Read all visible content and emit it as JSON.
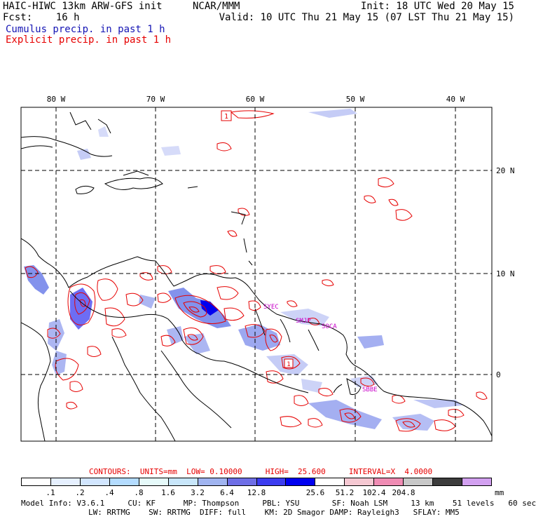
{
  "header": {
    "model_title": "HAIC-HIWC 13km ARW-GFS init",
    "center": "NCAR/MMM",
    "init": "Init: 18 UTC Wed 20 May 15",
    "fcst_label": "Fcst:",
    "fcst_value": "16 h",
    "valid": "Valid: 10 UTC Thu 21 May 15 (07 LST Thu 21 May 15)",
    "cumulus": "Cumulus precip. in past 1 h",
    "explicit": "Explicit precip. in past 1 h"
  },
  "map": {
    "lon_labels": [
      "80 W",
      "70 W",
      "60 W",
      "50 W",
      "40 W"
    ],
    "lat_labels": [
      "20 N",
      "10 N",
      "0"
    ],
    "max_marker": "1",
    "min_marker": "1",
    "stations": [
      "SYEC",
      "SMJP",
      "SOCA",
      "SBBE"
    ],
    "colors": {
      "coast": "#000000",
      "cumulus": "#5a6ee6",
      "explicit": "#e60000",
      "station": "#c800c8"
    }
  },
  "contours": {
    "label": "CONTOURS:",
    "units": "UNITS=mm",
    "low": "LOW= 0.10000",
    "high": "HIGH=  25.600",
    "interval": "INTERVAL=X  4.0000"
  },
  "colorbar": {
    "colors": [
      "#ffffff",
      "#e6f0ff",
      "#d2e6ff",
      "#b4dcff",
      "#e6fafa",
      "#c8e6fa",
      "#a0b4f0",
      "#6e6ee6",
      "#3c3cf0",
      "#0000f0",
      "#ffffff",
      "#f5c8d2",
      "#f08cb4",
      "#c8c8c8",
      "#3c3c3c",
      "#d2a0f0"
    ],
    "labels": [
      ".1",
      ".2",
      ".4",
      ".8",
      "1.6",
      "3.2",
      "6.4",
      "12.8",
      "25.6",
      "51.2",
      "102.4",
      "204.8"
    ],
    "unit": "mm"
  },
  "model_info": {
    "line1": "Model Info: V3.6.1     CU: KF      MP: Thompson     PBL: YSU       SF: Noah LSM     13 km    51 levels   60 sec",
    "line2": "LW: RRTMG    SW: RRTMG  DIFF: full    KM: 2D Smagor DAMP: Rayleigh3   SFLAY: MM5"
  }
}
